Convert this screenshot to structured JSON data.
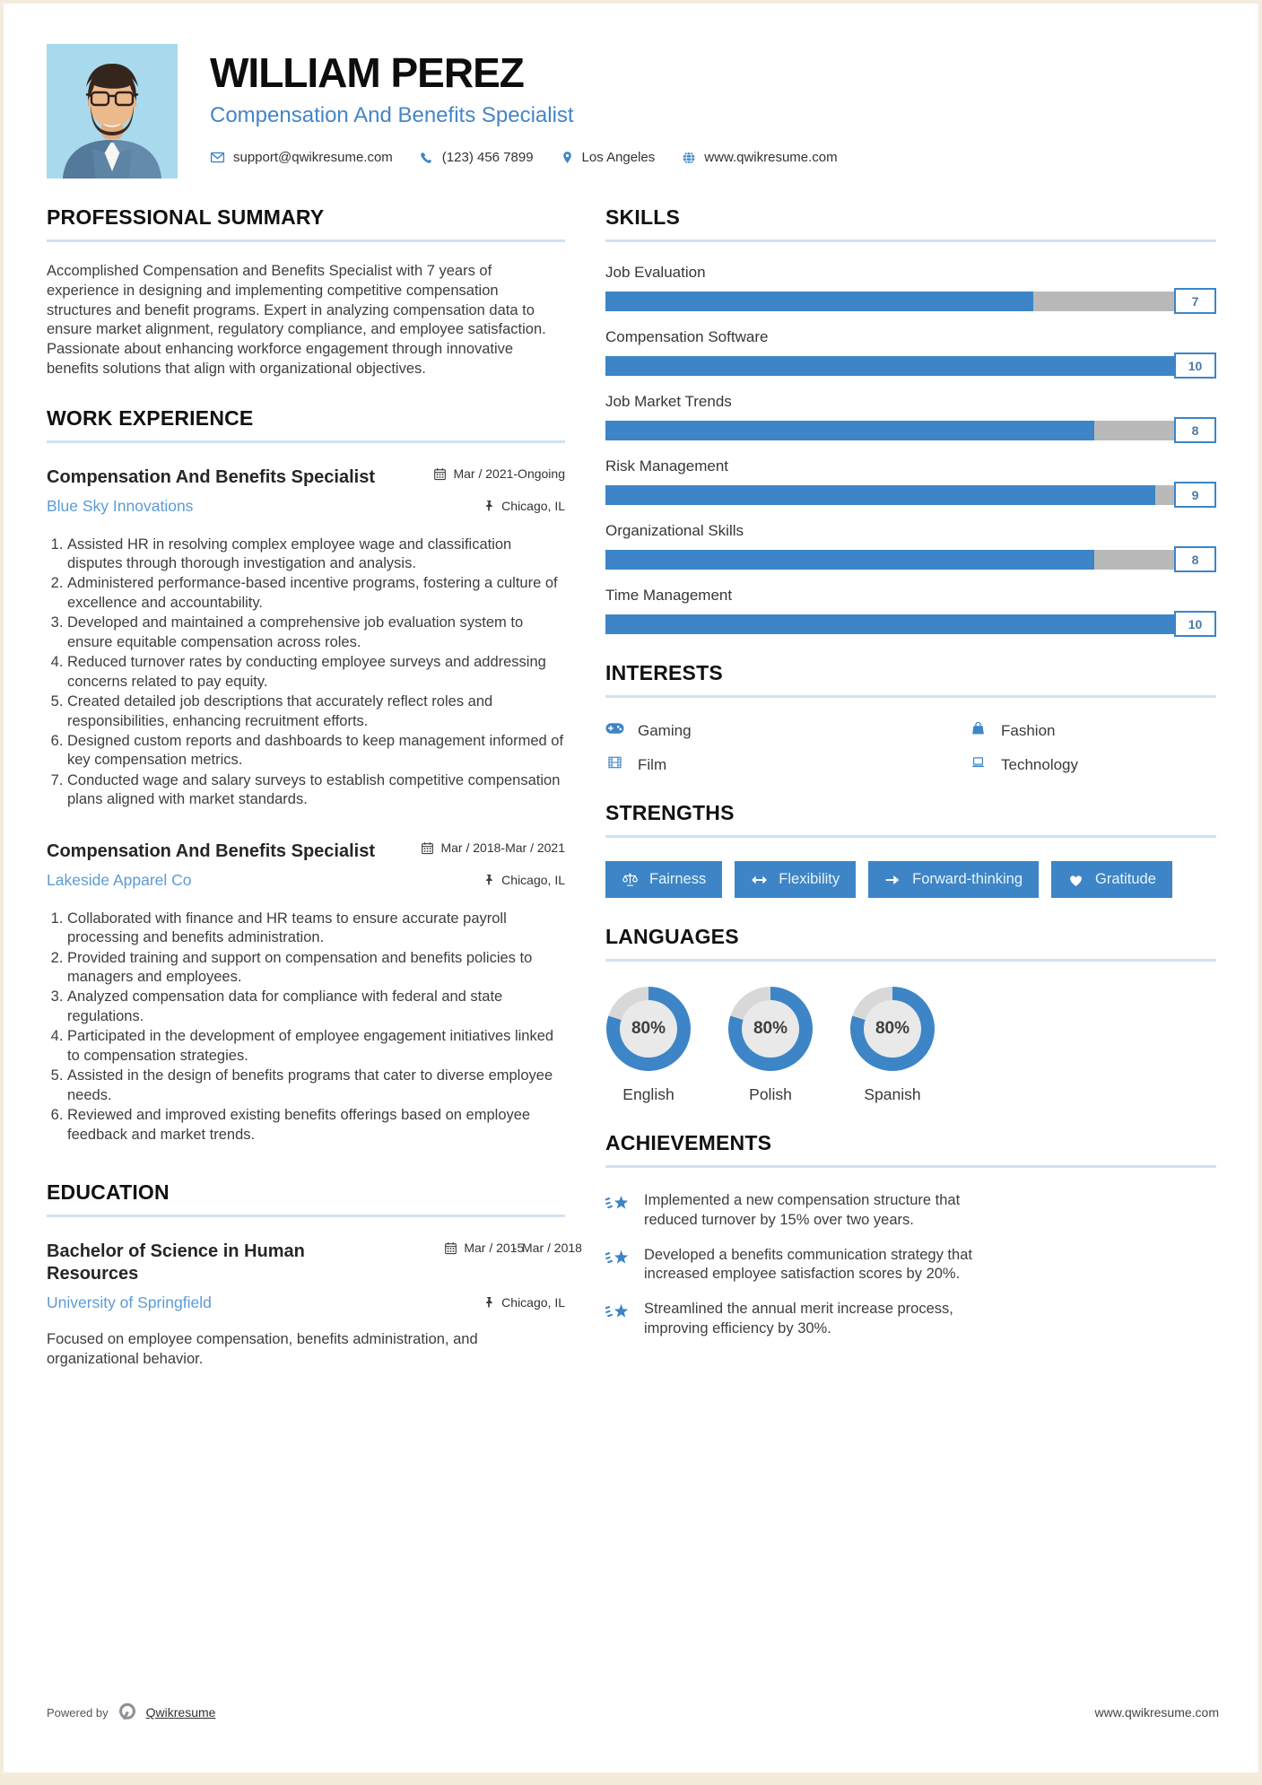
{
  "colors": {
    "accent": "#3d85c6",
    "bar_gray": "#b9b9b9",
    "rule_blue": "#cfe2f4",
    "link_blue": "#5b9bd5"
  },
  "header": {
    "name": "WILLIAM PEREZ",
    "title": "Compensation And Benefits Specialist",
    "email": "support@qwikresume.com",
    "phone": "(123) 456 7899",
    "location": "Los Angeles",
    "website": "www.qwikresume.com"
  },
  "sections": {
    "summary": {
      "heading": "PROFESSIONAL SUMMARY",
      "text": "Accomplished Compensation and Benefits Specialist with 7 years of experience in designing and implementing competitive compensation structures and benefit programs. Expert in analyzing compensation data to ensure market alignment, regulatory compliance, and employee satisfaction. Passionate about enhancing workforce engagement through innovative benefits solutions that align with organizational objectives."
    },
    "experience": {
      "heading": "WORK EXPERIENCE",
      "jobs": [
        {
          "title": "Compensation And Benefits Specialist",
          "company": "Blue Sky Innovations",
          "dates": "Mar / 2021-Ongoing",
          "location": "Chicago, IL",
          "bullets": [
            "Assisted HR in resolving complex employee wage and classification disputes through thorough investigation and analysis.",
            "Administered performance-based incentive programs, fostering a culture of excellence and accountability.",
            "Developed and maintained a comprehensive job evaluation system to ensure equitable compensation across roles.",
            "Reduced turnover rates by conducting employee surveys and addressing concerns related to pay equity.",
            "Created detailed job descriptions that accurately reflect roles and responsibilities, enhancing recruitment efforts.",
            "Designed custom reports and dashboards to keep management informed of key compensation metrics.",
            "Conducted wage and salary surveys to establish competitive compensation plans aligned with market standards."
          ]
        },
        {
          "title": "Compensation And Benefits Specialist",
          "company": "Lakeside Apparel Co",
          "dates": "Mar / 2018-Mar / 2021",
          "location": "Chicago, IL",
          "bullets": [
            "Collaborated with finance and HR teams to ensure accurate payroll processing and benefits administration.",
            "Provided training and support on compensation and benefits policies to managers and employees.",
            "Analyzed compensation data for compliance with federal and state regulations.",
            "Participated in the development of employee engagement initiatives linked to compensation strategies.",
            "Assisted in the design of benefits programs that cater to diverse employee needs.",
            "Reviewed and improved existing benefits offerings based on employee feedback and market trends."
          ]
        }
      ]
    },
    "education": {
      "heading": "EDUCATION",
      "degree": "Bachelor of Science in Human Resources",
      "school": "University of Springfield",
      "date_start": "Mar / 2015",
      "date_separator": "-",
      "date_end": "Mar / 2018",
      "location": "Chicago, IL",
      "description": "Focused on employee compensation, benefits administration, and organizational behavior."
    },
    "skills": {
      "heading": "SKILLS",
      "items": [
        {
          "label": "Job Evaluation",
          "value": 7,
          "max": 10,
          "percent": 70
        },
        {
          "label": "Compensation Software",
          "value": 10,
          "max": 10,
          "percent": 100
        },
        {
          "label": "Job Market Trends",
          "value": 8,
          "max": 10,
          "percent": 80
        },
        {
          "label": "Risk Management",
          "value": 9,
          "max": 10,
          "percent": 90
        },
        {
          "label": "Organizational Skills",
          "value": 8,
          "max": 10,
          "percent": 80
        },
        {
          "label": "Time Management",
          "value": 10,
          "max": 10,
          "percent": 100
        }
      ]
    },
    "interests": {
      "heading": "INTERESTS",
      "items": [
        {
          "icon": "gamepad-icon",
          "label": "Gaming"
        },
        {
          "icon": "bag-icon",
          "label": "Fashion"
        },
        {
          "icon": "film-icon",
          "label": "Film"
        },
        {
          "icon": "laptop-icon",
          "label": "Technology"
        }
      ]
    },
    "strengths": {
      "heading": "STRENGTHS",
      "items": [
        {
          "icon": "scales-icon",
          "label": "Fairness"
        },
        {
          "icon": "arrows-icon",
          "label": "Flexibility"
        },
        {
          "icon": "arrow-right-icon",
          "label": "Forward-thinking"
        },
        {
          "icon": "heart-icon",
          "label": "Gratitude"
        }
      ]
    },
    "languages": {
      "heading": "LANGUAGES",
      "items": [
        {
          "name": "English",
          "percent": 80,
          "percent_label": "80%"
        },
        {
          "name": "Polish",
          "percent": 80,
          "percent_label": "80%"
        },
        {
          "name": "Spanish",
          "percent": 80,
          "percent_label": "80%"
        }
      ]
    },
    "achievements": {
      "heading": "ACHIEVEMENTS",
      "items": [
        "Implemented a new compensation structure that reduced turnover by 15% over two years.",
        "Developed a benefits communication strategy that increased employee satisfaction scores by 20%.",
        "Streamlined the annual merit increase process, improving efficiency by 30%."
      ]
    }
  },
  "footer": {
    "powered_by": "Powered by",
    "brand": "Qwikresume",
    "website": "www.qwikresume.com"
  }
}
